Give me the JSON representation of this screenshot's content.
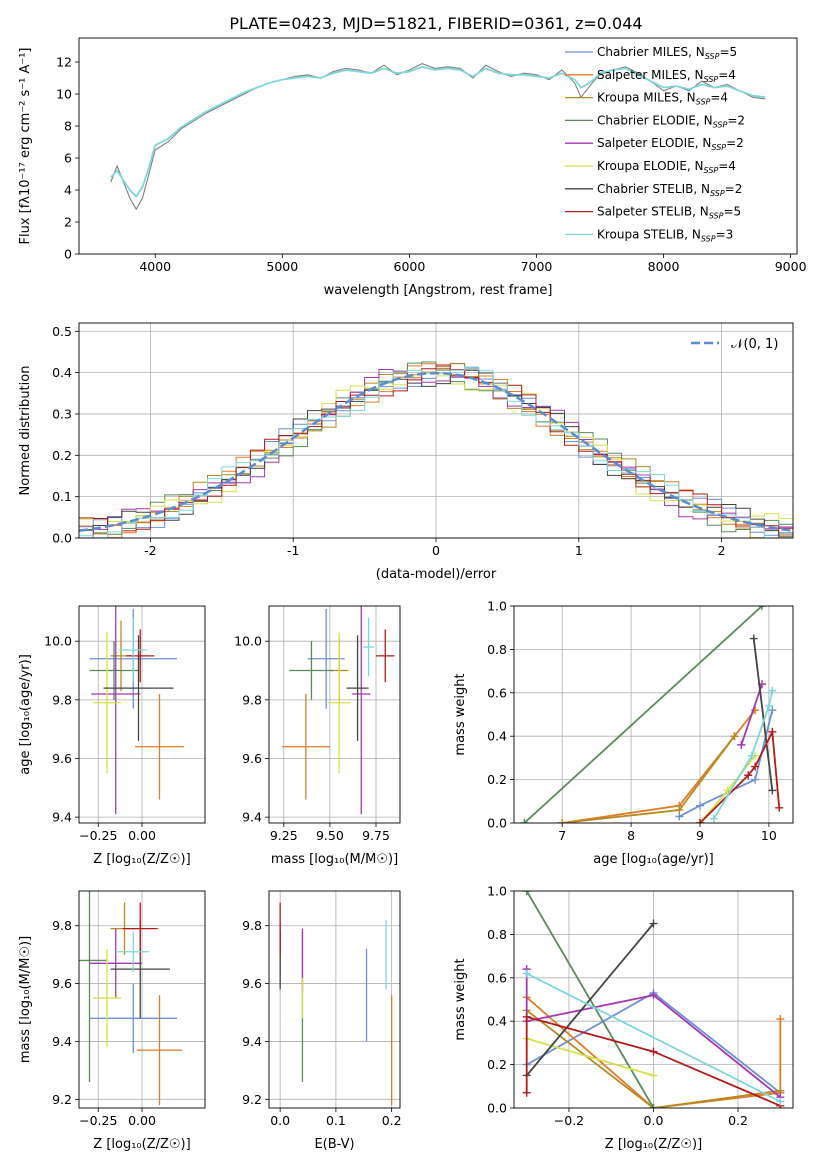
{
  "figure": {
    "title": "PLATE=0423, MJD=51821, FIBERID=0361, z=0.044"
  },
  "models": [
    {
      "name": "Chabrier MILES",
      "nssp": "5",
      "color": "#6f8fd8"
    },
    {
      "name": "Salpeter MILES",
      "nssp": "4",
      "color": "#e07b2a"
    },
    {
      "name": "Kroupa MILES",
      "nssp": "4",
      "color": "#b58a1f"
    },
    {
      "name": "Chabrier ELODIE",
      "nssp": "2",
      "color": "#5b8a5b"
    },
    {
      "name": "Salpeter ELODIE",
      "nssp": "2",
      "color": "#a33ab0"
    },
    {
      "name": "Kroupa ELODIE",
      "nssp": "4",
      "color": "#d6e04a"
    },
    {
      "name": "Chabrier STELIB",
      "nssp": "2",
      "color": "#444444"
    },
    {
      "name": "Salpeter STELIB",
      "nssp": "5",
      "color": "#b01c1c"
    },
    {
      "name": "Kroupa STELIB",
      "nssp": "3",
      "color": "#7fd6d9"
    }
  ],
  "chart_data": [
    {
      "id": "spectrum",
      "type": "line",
      "xlabel": "wavelength [Angstrom, rest frame]",
      "ylabel": "Flux [fλ10⁻¹⁷ erg cm⁻² s⁻¹ A⁻¹]",
      "xlim": [
        3400,
        9050
      ],
      "ylim": [
        0,
        13.5
      ],
      "xticks": [
        4000,
        5000,
        6000,
        7000,
        8000,
        9000
      ],
      "yticks": [
        0,
        2,
        4,
        6,
        8,
        10,
        12
      ],
      "grid": false,
      "legend": "upper right",
      "observed": {
        "color": "#808080",
        "x": [
          3650,
          3700,
          3750,
          3800,
          3850,
          3900,
          3950,
          4000,
          4100,
          4200,
          4300,
          4400,
          4500,
          4600,
          4700,
          4800,
          4900,
          5000,
          5100,
          5200,
          5300,
          5400,
          5500,
          5600,
          5700,
          5800,
          5900,
          6000,
          6100,
          6200,
          6300,
          6400,
          6500,
          6600,
          6700,
          6800,
          6900,
          7000,
          7100,
          7200,
          7300,
          7350,
          7400,
          7450,
          7500,
          7600,
          7700,
          7800,
          7900,
          8000,
          8100,
          8200,
          8300,
          8400,
          8500,
          8600,
          8700,
          8800
        ],
        "y": [
          4.5,
          5.5,
          4.5,
          3.5,
          2.8,
          3.5,
          5.0,
          6.5,
          7.0,
          7.8,
          8.3,
          8.8,
          9.2,
          9.6,
          10.0,
          10.4,
          10.7,
          10.9,
          11.1,
          11.2,
          11.0,
          11.4,
          11.6,
          11.5,
          11.3,
          11.8,
          11.2,
          11.5,
          11.9,
          11.6,
          11.7,
          11.6,
          11.0,
          11.8,
          11.4,
          11.1,
          11.3,
          11.2,
          10.9,
          11.5,
          10.7,
          9.8,
          10.3,
          10.8,
          11.2,
          11.5,
          11.7,
          11.3,
          10.8,
          10.2,
          10.5,
          10.2,
          10.8,
          10.4,
          10.6,
          10.2,
          9.8,
          9.7
        ]
      },
      "model": {
        "color": "#7fd6d9",
        "x": [
          3650,
          3700,
          3750,
          3800,
          3850,
          3900,
          3950,
          4000,
          4100,
          4200,
          4300,
          4400,
          4500,
          4600,
          4700,
          4800,
          4900,
          5000,
          5100,
          5200,
          5300,
          5400,
          5500,
          5600,
          5700,
          5800,
          5900,
          6000,
          6100,
          6200,
          6300,
          6400,
          6500,
          6600,
          6700,
          6800,
          6900,
          7000,
          7100,
          7200,
          7300,
          7350,
          7400,
          7450,
          7500,
          7600,
          7700,
          7800,
          7900,
          8000,
          8100,
          8200,
          8300,
          8400,
          8500,
          8600,
          8700,
          8800
        ],
        "y": [
          4.8,
          5.2,
          4.6,
          4.0,
          3.6,
          4.2,
          5.4,
          6.8,
          7.2,
          7.9,
          8.4,
          8.9,
          9.3,
          9.7,
          10.1,
          10.4,
          10.7,
          10.9,
          11.0,
          11.1,
          11.0,
          11.3,
          11.5,
          11.4,
          11.3,
          11.6,
          11.3,
          11.4,
          11.7,
          11.5,
          11.6,
          11.5,
          11.1,
          11.6,
          11.3,
          11.2,
          11.2,
          11.1,
          11.0,
          11.3,
          10.9,
          10.4,
          10.6,
          10.9,
          11.3,
          11.5,
          11.6,
          11.2,
          10.8,
          10.4,
          10.5,
          10.3,
          10.6,
          10.4,
          10.5,
          10.2,
          9.9,
          9.8
        ]
      }
    },
    {
      "id": "residuals",
      "type": "line",
      "xlabel": "(data-model)/error",
      "ylabel": "Normed distribution",
      "xlim": [
        -2.5,
        2.5
      ],
      "ylim": [
        0,
        0.52
      ],
      "xticks": [
        -2,
        -1,
        0,
        1,
        2
      ],
      "yticks": [
        0.0,
        0.1,
        0.2,
        0.3,
        0.4,
        0.5
      ],
      "grid": true,
      "legend": "upper right",
      "gaussian_label": "𝒩(0, 1)",
      "gaussian_color": "#5b8bd0",
      "bin_width": 0.1
    },
    {
      "id": "age_vs_z",
      "type": "scatter",
      "xlabel": "Z [log₁₀(Z/Z☉)]",
      "ylabel": "age  [log₁₀(age/yr)]",
      "xlim": [
        -0.36,
        0.36
      ],
      "ylim": [
        9.38,
        10.12
      ],
      "xticks": [
        -0.25,
        0.0
      ],
      "xtick_labels": [
        "−0.25",
        "0.00"
      ],
      "yticks": [
        9.4,
        9.6,
        9.8,
        10.0
      ],
      "grid": true,
      "points": [
        {
          "x": -0.05,
          "y": 9.94,
          "xerr": 0.25,
          "yerr": 0.17
        },
        {
          "x": 0.1,
          "y": 9.64,
          "xerr": 0.14,
          "yerr": 0.18
        },
        {
          "x": -0.12,
          "y": 9.95,
          "xerr": 0.06,
          "yerr": 0.12
        },
        {
          "x": -0.16,
          "y": 9.9,
          "xerr": 0.14,
          "yerr": 0.1
        },
        {
          "x": -0.15,
          "y": 9.82,
          "xerr": 0.14,
          "yerr": 0.41
        },
        {
          "x": -0.2,
          "y": 9.79,
          "xerr": 0.08,
          "yerr": 0.24
        },
        {
          "x": -0.02,
          "y": 9.84,
          "xerr": 0.2,
          "yerr": 0.18
        },
        {
          "x": -0.01,
          "y": 9.95,
          "xerr": 0.08,
          "yerr": 0.09
        },
        {
          "x": -0.05,
          "y": 9.97,
          "xerr": 0.08,
          "yerr": 0.11
        }
      ]
    },
    {
      "id": "age_vs_mass",
      "type": "scatter",
      "xlabel": "mass [log₁₀(M/M☉)]",
      "ylabel": "",
      "xlim": [
        9.17,
        9.88
      ],
      "ylim": [
        9.38,
        10.12
      ],
      "xticks": [
        9.25,
        9.5,
        9.75
      ],
      "xtick_labels": [
        "9.25",
        "9.50",
        "9.75"
      ],
      "yticks": [
        9.4,
        9.6,
        9.8,
        10.0
      ],
      "grid": true,
      "points": [
        {
          "x": 9.48,
          "y": 9.94,
          "xerr": 0.1,
          "yerr": 0.17
        },
        {
          "x": 9.37,
          "y": 9.64,
          "xerr": 0.13,
          "yerr": 0.18
        },
        {
          "x": 9.55,
          "y": 9.9,
          "xerr": 0.05,
          "yerr": 0.11
        },
        {
          "x": 9.4,
          "y": 9.9,
          "xerr": 0.12,
          "yerr": 0.1
        },
        {
          "x": 9.67,
          "y": 9.82,
          "xerr": 0.05,
          "yerr": 0.41
        },
        {
          "x": 9.55,
          "y": 9.79,
          "xerr": 0.06,
          "yerr": 0.24
        },
        {
          "x": 9.65,
          "y": 9.84,
          "xerr": 0.06,
          "yerr": 0.18
        },
        {
          "x": 9.8,
          "y": 9.95,
          "xerr": 0.05,
          "yerr": 0.09
        },
        {
          "x": 9.71,
          "y": 9.98,
          "xerr": 0.03,
          "yerr": 0.1
        }
      ]
    },
    {
      "id": "weight_vs_age",
      "type": "line",
      "xlabel": "age  [log₁₀(age/yr)]",
      "ylabel": "mass weight",
      "xlim": [
        6.3,
        10.35
      ],
      "ylim": [
        0,
        1.0
      ],
      "xticks": [
        7,
        8,
        9,
        10
      ],
      "yticks": [
        0.0,
        0.2,
        0.4,
        0.6,
        0.8,
        1.0
      ],
      "grid": true,
      "series": [
        {
          "x": [
            8.7,
            9.0,
            9.8,
            10.05
          ],
          "y": [
            0.03,
            0.08,
            0.2,
            0.52
          ]
        },
        {
          "x": [
            7.0,
            8.7,
            9.5,
            9.8
          ],
          "y": [
            0.0,
            0.08,
            0.4,
            0.52
          ]
        },
        {
          "x": [
            7.0,
            8.7,
            9.5
          ],
          "y": [
            0.0,
            0.06,
            0.4
          ]
        },
        {
          "x": [
            6.45,
            9.9
          ],
          "y": [
            0.0,
            1.0
          ]
        },
        {
          "x": [
            9.6,
            9.9
          ],
          "y": [
            0.36,
            0.64
          ]
        },
        {
          "x": [
            9.0,
            9.4,
            9.8
          ],
          "y": [
            0.0,
            0.15,
            0.31
          ]
        },
        {
          "x": [
            9.78,
            10.05
          ],
          "y": [
            0.85,
            0.15
          ]
        },
        {
          "x": [
            9.0,
            9.7,
            9.8,
            10.05,
            10.15
          ],
          "y": [
            0.0,
            0.22,
            0.26,
            0.42,
            0.07
          ]
        },
        {
          "x": [
            9.2,
            9.75,
            10.0,
            10.05
          ],
          "y": [
            0.02,
            0.31,
            0.54,
            0.61
          ]
        }
      ]
    },
    {
      "id": "mass_vs_z",
      "type": "scatter",
      "xlabel": "Z [log₁₀(Z/Z☉)]",
      "ylabel": "mass [log₁₀(M/M☉)]",
      "xlim": [
        -0.36,
        0.36
      ],
      "ylim": [
        9.17,
        9.92
      ],
      "xticks": [
        -0.25,
        0.0
      ],
      "xtick_labels": [
        "−0.25",
        "0.00"
      ],
      "yticks": [
        9.2,
        9.4,
        9.6,
        9.8
      ],
      "grid": true,
      "points": [
        {
          "x": -0.05,
          "y": 9.48,
          "xerr": 0.25,
          "yerr": 0.12
        },
        {
          "x": 0.1,
          "y": 9.37,
          "xerr": 0.13,
          "yerr": 0.19
        },
        {
          "x": -0.1,
          "y": 9.79,
          "xerr": 0.08,
          "yerr": 0.09
        },
        {
          "x": -0.3,
          "y": 9.68,
          "xerr": 0.1,
          "yerr": 0.42
        },
        {
          "x": -0.15,
          "y": 9.67,
          "xerr": 0.15,
          "yerr": 0.12
        },
        {
          "x": -0.2,
          "y": 9.55,
          "xerr": 0.08,
          "yerr": 0.17
        },
        {
          "x": -0.01,
          "y": 9.65,
          "xerr": 0.17,
          "yerr": 0.17
        },
        {
          "x": -0.01,
          "y": 9.79,
          "xerr": 0.1,
          "yerr": 0.09
        },
        {
          "x": -0.05,
          "y": 9.71,
          "xerr": 0.09,
          "yerr": 0.07
        }
      ]
    },
    {
      "id": "mass_vs_ebv",
      "type": "scatter",
      "xlabel": "E(B-V)",
      "ylabel": "",
      "xlim": [
        -0.02,
        0.215
      ],
      "ylim": [
        9.17,
        9.92
      ],
      "xticks": [
        0.0,
        0.1,
        0.2
      ],
      "xtick_labels": [
        "0.0",
        "0.1",
        "0.2"
      ],
      "yticks": [
        9.2,
        9.4,
        9.6,
        9.8
      ],
      "grid": true,
      "points": [
        {
          "x": 0.155,
          "y": 9.56,
          "xerr": 0,
          "yerr": 0.16
        },
        {
          "x": 0.2,
          "y": 9.37,
          "xerr": 0,
          "yerr": 0.19
        },
        {
          "x": 0.0,
          "y": 9.72,
          "xerr": 0,
          "yerr": 0.09
        },
        {
          "x": 0.04,
          "y": 9.52,
          "xerr": 0,
          "yerr": 0.26
        },
        {
          "x": 0.04,
          "y": 9.68,
          "xerr": 0,
          "yerr": 0.11
        },
        {
          "x": 0.04,
          "y": 9.55,
          "xerr": 0,
          "yerr": 0.07
        },
        {
          "x": 0.0,
          "y": 9.68,
          "xerr": 0,
          "yerr": 0.1
        },
        {
          "x": 0.0,
          "y": 9.79,
          "xerr": 0,
          "yerr": 0.09
        },
        {
          "x": 0.19,
          "y": 9.7,
          "xerr": 0,
          "yerr": 0.12
        }
      ]
    },
    {
      "id": "weight_vs_z",
      "type": "line",
      "xlabel": "Z [log₁₀(Z/Z☉)]",
      "ylabel": "mass weight",
      "xlim": [
        -0.33,
        0.33
      ],
      "ylim": [
        0,
        1.0
      ],
      "xticks": [
        -0.2,
        0.0,
        0.2
      ],
      "xtick_labels": [
        "−0.2",
        "0.0",
        "0.2"
      ],
      "yticks": [
        0.0,
        0.2,
        0.4,
        0.6,
        0.8,
        1.0
      ],
      "grid": true,
      "series": [
        {
          "x": [
            -0.3,
            0.0,
            0.3
          ],
          "y": [
            0.2,
            0.53,
            0.07
          ]
        },
        {
          "x": [
            -0.3,
            0.0,
            0.3,
            0.3
          ],
          "y": [
            0.51,
            0.0,
            0.07,
            0.41
          ]
        },
        {
          "x": [
            -0.3,
            0.0,
            0.3
          ],
          "y": [
            0.45,
            0.0,
            0.08
          ]
        },
        {
          "x": [
            -0.3,
            0.0
          ],
          "y": [
            1.0,
            0.0
          ]
        },
        {
          "x": [
            -0.3,
            -0.3,
            0.0,
            0.3
          ],
          "y": [
            0.64,
            0.4,
            0.52,
            0.05
          ]
        },
        {
          "x": [
            -0.3,
            0.0
          ],
          "y": [
            0.32,
            0.15
          ]
        },
        {
          "x": [
            -0.3,
            0.0
          ],
          "y": [
            0.15,
            0.85
          ]
        },
        {
          "x": [
            -0.3,
            -0.3,
            0.0,
            0.3
          ],
          "y": [
            0.07,
            0.42,
            0.26,
            0.01
          ]
        },
        {
          "x": [
            -0.3,
            0.3
          ],
          "y": [
            0.62,
            0.03
          ]
        }
      ]
    }
  ]
}
